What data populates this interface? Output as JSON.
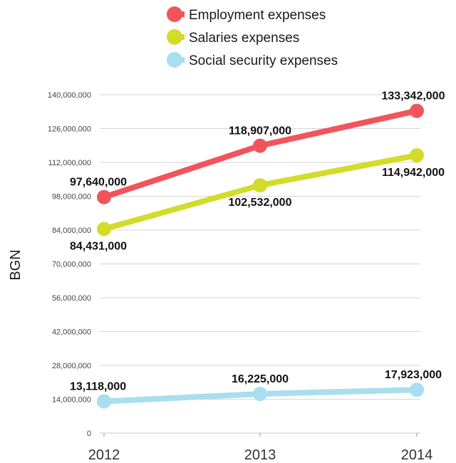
{
  "chart_data": {
    "type": "line",
    "categories": [
      "2012",
      "2013",
      "2014"
    ],
    "ylabel": "BGN",
    "ylim": [
      0,
      140000000
    ],
    "yticks": [
      0,
      14000000,
      28000000,
      42000000,
      56000000,
      70000000,
      84000000,
      98000000,
      112000000,
      126000000,
      140000000
    ],
    "ytick_labels": [
      "0",
      "14,000,000",
      "28,000,000",
      "42,000,000",
      "56,000,000",
      "70,000,000",
      "84,000,000",
      "98,000,000",
      "112,000,000",
      "126,000,000",
      "140,000,000"
    ],
    "grid": true,
    "legend_position": "top",
    "series": [
      {
        "name": "Employment expenses",
        "color": "#f2545b",
        "values": [
          97640000,
          118907000,
          133342000
        ],
        "labels": [
          "97,640,000",
          "118,907,000",
          "133,342,000"
        ],
        "label_placement": [
          "above",
          "above",
          "above"
        ]
      },
      {
        "name": "Salaries expenses",
        "color": "#d3dc2a",
        "values": [
          84431000,
          102532000,
          114942000
        ],
        "labels": [
          "84,431,000",
          "102,532,000",
          "114,942,000"
        ],
        "label_placement": [
          "below",
          "below",
          "below"
        ]
      },
      {
        "name": "Social security expenses",
        "color": "#a8def0",
        "values": [
          13118000,
          16225000,
          17923000
        ],
        "labels": [
          "13,118,000",
          "16,225,000",
          "17,923,000"
        ],
        "label_placement": [
          "above",
          "above",
          "above"
        ]
      }
    ]
  }
}
